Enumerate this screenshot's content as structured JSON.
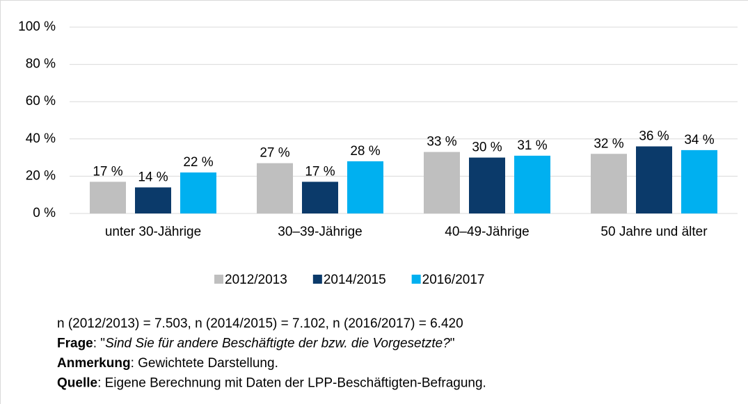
{
  "chart_data": {
    "type": "bar",
    "categories": [
      "unter 30-Jährige",
      "30–39-Jährige",
      "40–49-Jährige",
      "50 Jahre und älter"
    ],
    "series": [
      {
        "name": "2012/2013",
        "color": "#bfbfbf",
        "values": [
          17,
          27,
          33,
          32
        ],
        "value_labels": [
          "17 %",
          "27 %",
          "33 %",
          "32 %"
        ]
      },
      {
        "name": "2014/2015",
        "color": "#0b3a6a",
        "values": [
          14,
          17,
          30,
          36
        ],
        "value_labels": [
          "14 %",
          "17 %",
          "30 %",
          "36 %"
        ]
      },
      {
        "name": "2016/2017",
        "color": "#00b0f0",
        "values": [
          22,
          28,
          31,
          34
        ],
        "value_labels": [
          "22 %",
          "28 %",
          "31 %",
          "34 %"
        ]
      }
    ],
    "ylim": [
      0,
      100
    ],
    "yticks": [
      {
        "value": 0,
        "label": "0 %"
      },
      {
        "value": 20,
        "label": "20 %"
      },
      {
        "value": 40,
        "label": "40 %"
      },
      {
        "value": 60,
        "label": "60 %"
      },
      {
        "value": 80,
        "label": "80 %"
      },
      {
        "value": 100,
        "label": "100 %"
      }
    ],
    "grid": true,
    "legend": "bottom"
  },
  "notes": [
    [
      {
        "text": "n (2012/2013) =  7.503, n (2014/2015) = 7.102, n (2016/2017) = 6.420"
      }
    ],
    [
      {
        "text": "Frage",
        "style": "bold"
      },
      {
        "text": ": \""
      },
      {
        "text": "Sind Sie für andere Beschäftigte der bzw. die Vorgesetzte?",
        "style": "italic"
      },
      {
        "text": "\""
      }
    ],
    [
      {
        "text": "Anmerkung",
        "style": "bold"
      },
      {
        "text": ": Gewichtete Darstellung."
      }
    ],
    [
      {
        "text": "Quelle",
        "style": "bold"
      },
      {
        "text": ": Eigene Berechnung mit Daten der LPP-Beschäftigten-Befragung."
      }
    ]
  ]
}
